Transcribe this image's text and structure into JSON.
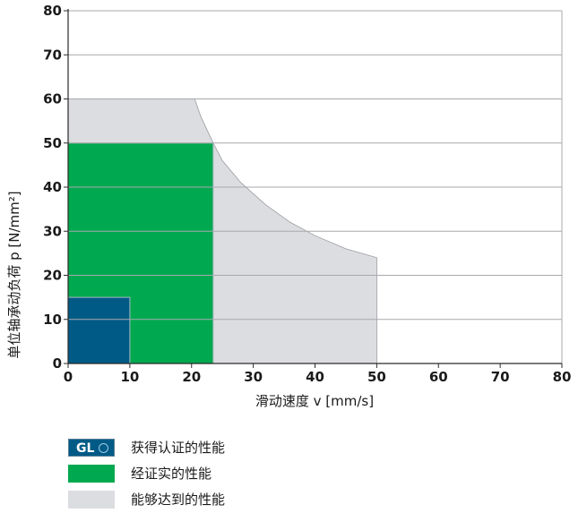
{
  "chart_data": {
    "type": "area",
    "xlabel": "滑动速度 v [mm/s]",
    "ylabel": "单位轴承动负荷 p [N/mm²]",
    "xlim": [
      0,
      80
    ],
    "ylim": [
      0,
      80
    ],
    "x_ticks": [
      0,
      10,
      20,
      30,
      40,
      50,
      60,
      70,
      80
    ],
    "y_ticks": [
      0,
      10,
      20,
      30,
      40,
      50,
      60,
      70,
      80
    ],
    "grid": "horizontal",
    "regions": [
      {
        "name": "能够达到的性能",
        "color": "#dcdde0",
        "points": [
          [
            0,
            0
          ],
          [
            0,
            60
          ],
          [
            20.5,
            60
          ],
          [
            21.5,
            56
          ],
          [
            23.5,
            50
          ],
          [
            25,
            46
          ],
          [
            28,
            41
          ],
          [
            32,
            36
          ],
          [
            36,
            32
          ],
          [
            40,
            29
          ],
          [
            45,
            26
          ],
          [
            50,
            24
          ],
          [
            50,
            0
          ]
        ]
      },
      {
        "name": "经证实的性能",
        "color": "#00a94f",
        "points": [
          [
            0,
            0
          ],
          [
            0,
            50
          ],
          [
            23.5,
            50
          ],
          [
            23.5,
            0
          ]
        ]
      },
      {
        "name": "获得认证的性能",
        "color": "#005a86",
        "points": [
          [
            0,
            0
          ],
          [
            0,
            15
          ],
          [
            10,
            15
          ],
          [
            10,
            0
          ]
        ]
      }
    ]
  },
  "legend": {
    "items": [
      {
        "label": "获得认证的性能",
        "color": "#005a86",
        "badge": "GL",
        "icon": "gl-certification-icon"
      },
      {
        "label": "经证实的性能",
        "color": "#00a94f"
      },
      {
        "label": "能够达到的性能",
        "color": "#dcdde0"
      }
    ]
  }
}
